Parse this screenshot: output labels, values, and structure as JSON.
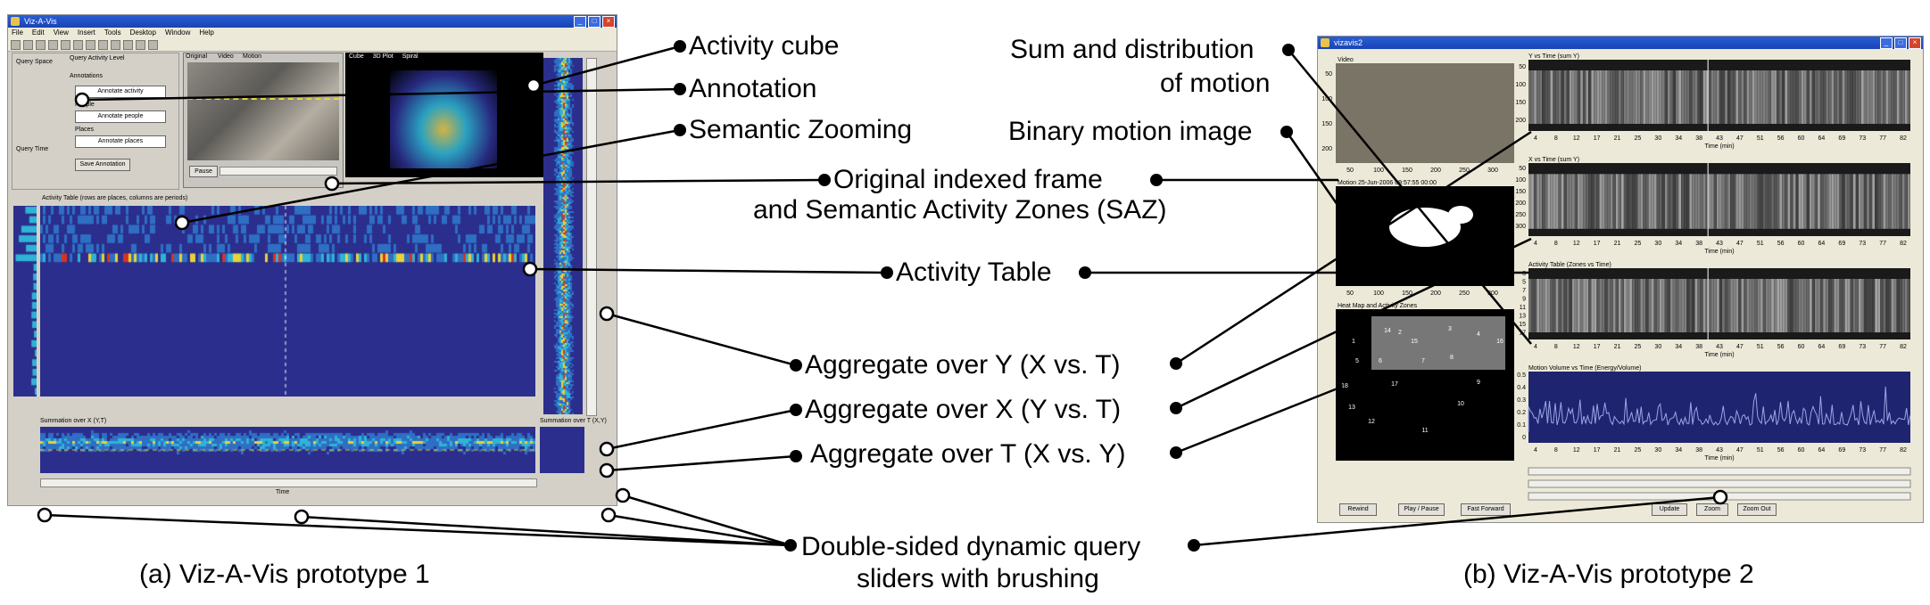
{
  "callouts": {
    "activity_cube": "Activity cube",
    "annotation": "Annotation",
    "semantic_zooming": "Semantic Zooming",
    "sum_distribution_line1": "Sum and distribution",
    "sum_distribution_line2": "of motion",
    "binary_motion_image": "Binary motion image",
    "original_frame_line1": "Original indexed frame",
    "original_frame_line2": "and Semantic Activity Zones (SAZ)",
    "activity_table": "Activity Table",
    "aggregate_y": "Aggregate over Y (X vs. T)",
    "aggregate_x": "Aggregate over X (Y vs. T)",
    "aggregate_t": "Aggregate over T (X vs. Y)",
    "sliders_line1": "Double-sided dynamic query",
    "sliders_line2": "sliders with brushing"
  },
  "captions": {
    "left": "(a) Viz-A-Vis prototype 1",
    "right": "(b) Viz-A-Vis prototype 2"
  },
  "proto1": {
    "title": "Viz-A-Vis",
    "menu": [
      "File",
      "Edit",
      "View",
      "Insert",
      "Tools",
      "Desktop",
      "Window",
      "Help"
    ],
    "query_space": "Query Space",
    "query_activity_level": "Query Activity Level",
    "query_time": "Query Time",
    "annotations": "Annotations",
    "annotate_activity": "Annotate activity",
    "people": "People",
    "annotate_people": "Annotate people",
    "places": "Places",
    "annotate_places": "Annotate places",
    "save_annotation": "Save Annotation",
    "view_original": "Original",
    "view_video": "Video",
    "view_motion": "Motion",
    "view_cube": "Cube",
    "view_3dplot": "3D Plot",
    "view_spiral": "Spiral",
    "pause": "Pause",
    "activity_table_title": "Activity Table (rows are places, columns are periods)",
    "summation_x": "Summation over X (Y,T)",
    "summation_t": "Summation over T (X,Y)",
    "time_label": "Time"
  },
  "proto2": {
    "title": "vizavis2",
    "video_label": "Video",
    "yvt_title": "Y vs Time (sum Y)",
    "xvt_title": "X vs Time (sum Y)",
    "activity_table_title": "Activity Table (Zones vs Time)",
    "heatmap_title": "Heat Map and Activity Zones",
    "motion_volume_title": "Motion Volume vs Time (Energy/Volume)",
    "binary_title": "Motion  25-Jun-2006 09:57:55 00:00",
    "time_axis_label": "Time (min)",
    "x_ticks": [
      "4",
      "8",
      "12",
      "17",
      "21",
      "25",
      "30",
      "34",
      "38",
      "43",
      "47",
      "51",
      "56",
      "60",
      "64",
      "69",
      "73",
      "77",
      "82"
    ],
    "video_x_ticks": [
      "50",
      "100",
      "150",
      "200",
      "250",
      "300"
    ],
    "video_y_ticks": [
      "50",
      "100",
      "150",
      "200"
    ],
    "yvt_y_ticks": [
      "50",
      "100",
      "150",
      "200"
    ],
    "xvt_y_ticks": [
      "50",
      "100",
      "150",
      "200",
      "250",
      "300"
    ],
    "zone_y_ticks": [
      "3",
      "5",
      "7",
      "9",
      "11",
      "13",
      "15",
      "17"
    ],
    "motion_y_ticks": [
      "0.5",
      "0.4",
      "0.3",
      "0.2",
      "0.1",
      "0"
    ],
    "zone_numbers": [
      "1",
      "2",
      "3",
      "4",
      "5",
      "6",
      "7",
      "8",
      "9",
      "10",
      "11",
      "12",
      "13",
      "14",
      "15",
      "16",
      "17",
      "18"
    ],
    "rewind": "Rewind",
    "play_pause": "Play / Pause",
    "fast_forward": "Fast Forward",
    "update": "Update",
    "zoom": "Zoom",
    "zoom_out": "Zoom Out"
  },
  "colors": {
    "heat_low": "#2b2e8c",
    "heat_mid": "#2fb3d6",
    "heat_high": "#e8d23a",
    "heat_peak": "#d8321f",
    "titlebar": "#1e4fc4",
    "window_bg": "#d4d0c8",
    "motion_line": "#9aa6e6"
  }
}
